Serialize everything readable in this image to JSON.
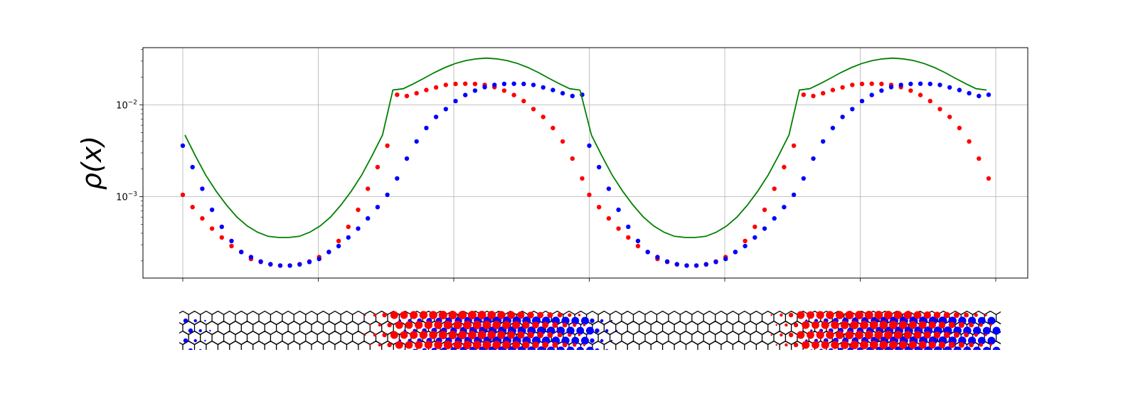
{
  "chart_data": {
    "type": "scatter",
    "title": "",
    "xlabel": "",
    "ylabel": "ρ(x)",
    "y_scale": "log",
    "ylim": [
      0.00013,
      0.042
    ],
    "grid": true,
    "y_ticks": [
      {
        "value": 0.01,
        "base": "10",
        "exp": "−2"
      },
      {
        "value": 0.001,
        "base": "10",
        "exp": "−3"
      }
    ],
    "x_tick_count": 7,
    "series": [
      {
        "color": "#ff0000",
        "style": "dots",
        "values": [
          0.00105,
          0.00077,
          0.00058,
          0.00045,
          0.00036,
          0.00029,
          0.00025,
          0.00021,
          0.000195,
          0.000183,
          0.000178,
          0.000178,
          0.000184,
          0.000197,
          0.00022,
          0.00025,
          0.00033,
          0.00047,
          0.00072,
          0.00122,
          0.0021,
          0.0036,
          0.0129,
          0.0125,
          0.0134,
          0.0145,
          0.0155,
          0.0165,
          0.0169,
          0.017,
          0.0169,
          0.0165,
          0.0156,
          0.0143,
          0.0128,
          0.011,
          0.009,
          0.0074,
          0.0056,
          0.004,
          0.0026,
          0.00158
        ]
      },
      {
        "color": "#0000ff",
        "style": "dots",
        "values": [
          0.0036,
          0.0021,
          0.00122,
          0.00072,
          0.00047,
          0.00033,
          0.00025,
          0.00022,
          0.000197,
          0.000184,
          0.000178,
          0.000178,
          0.000183,
          0.000195,
          0.00021,
          0.00025,
          0.00029,
          0.00036,
          0.00045,
          0.00058,
          0.00077,
          0.00105,
          0.00158,
          0.0026,
          0.004,
          0.0056,
          0.0074,
          0.009,
          0.011,
          0.0128,
          0.0143,
          0.0156,
          0.0165,
          0.0169,
          0.017,
          0.0169,
          0.0165,
          0.0155,
          0.0145,
          0.0134,
          0.0125,
          0.0129
        ]
      },
      {
        "color": "#008000",
        "style": "line",
        "values": [
          0.0047,
          0.0028,
          0.00172,
          0.00115,
          0.00081,
          0.0006,
          0.00048,
          0.00041,
          0.00037,
          0.00036,
          0.00036,
          0.00037,
          0.00041,
          0.00048,
          0.0006,
          0.00081,
          0.00115,
          0.00172,
          0.0028,
          0.0047,
          0.0145,
          0.015,
          0.017,
          0.0195,
          0.0225,
          0.0255,
          0.0282,
          0.0303,
          0.0317,
          0.0323,
          0.0317,
          0.0303,
          0.0282,
          0.0255,
          0.0225,
          0.0195,
          0.017,
          0.015,
          0.0145
        ]
      }
    ]
  }
}
